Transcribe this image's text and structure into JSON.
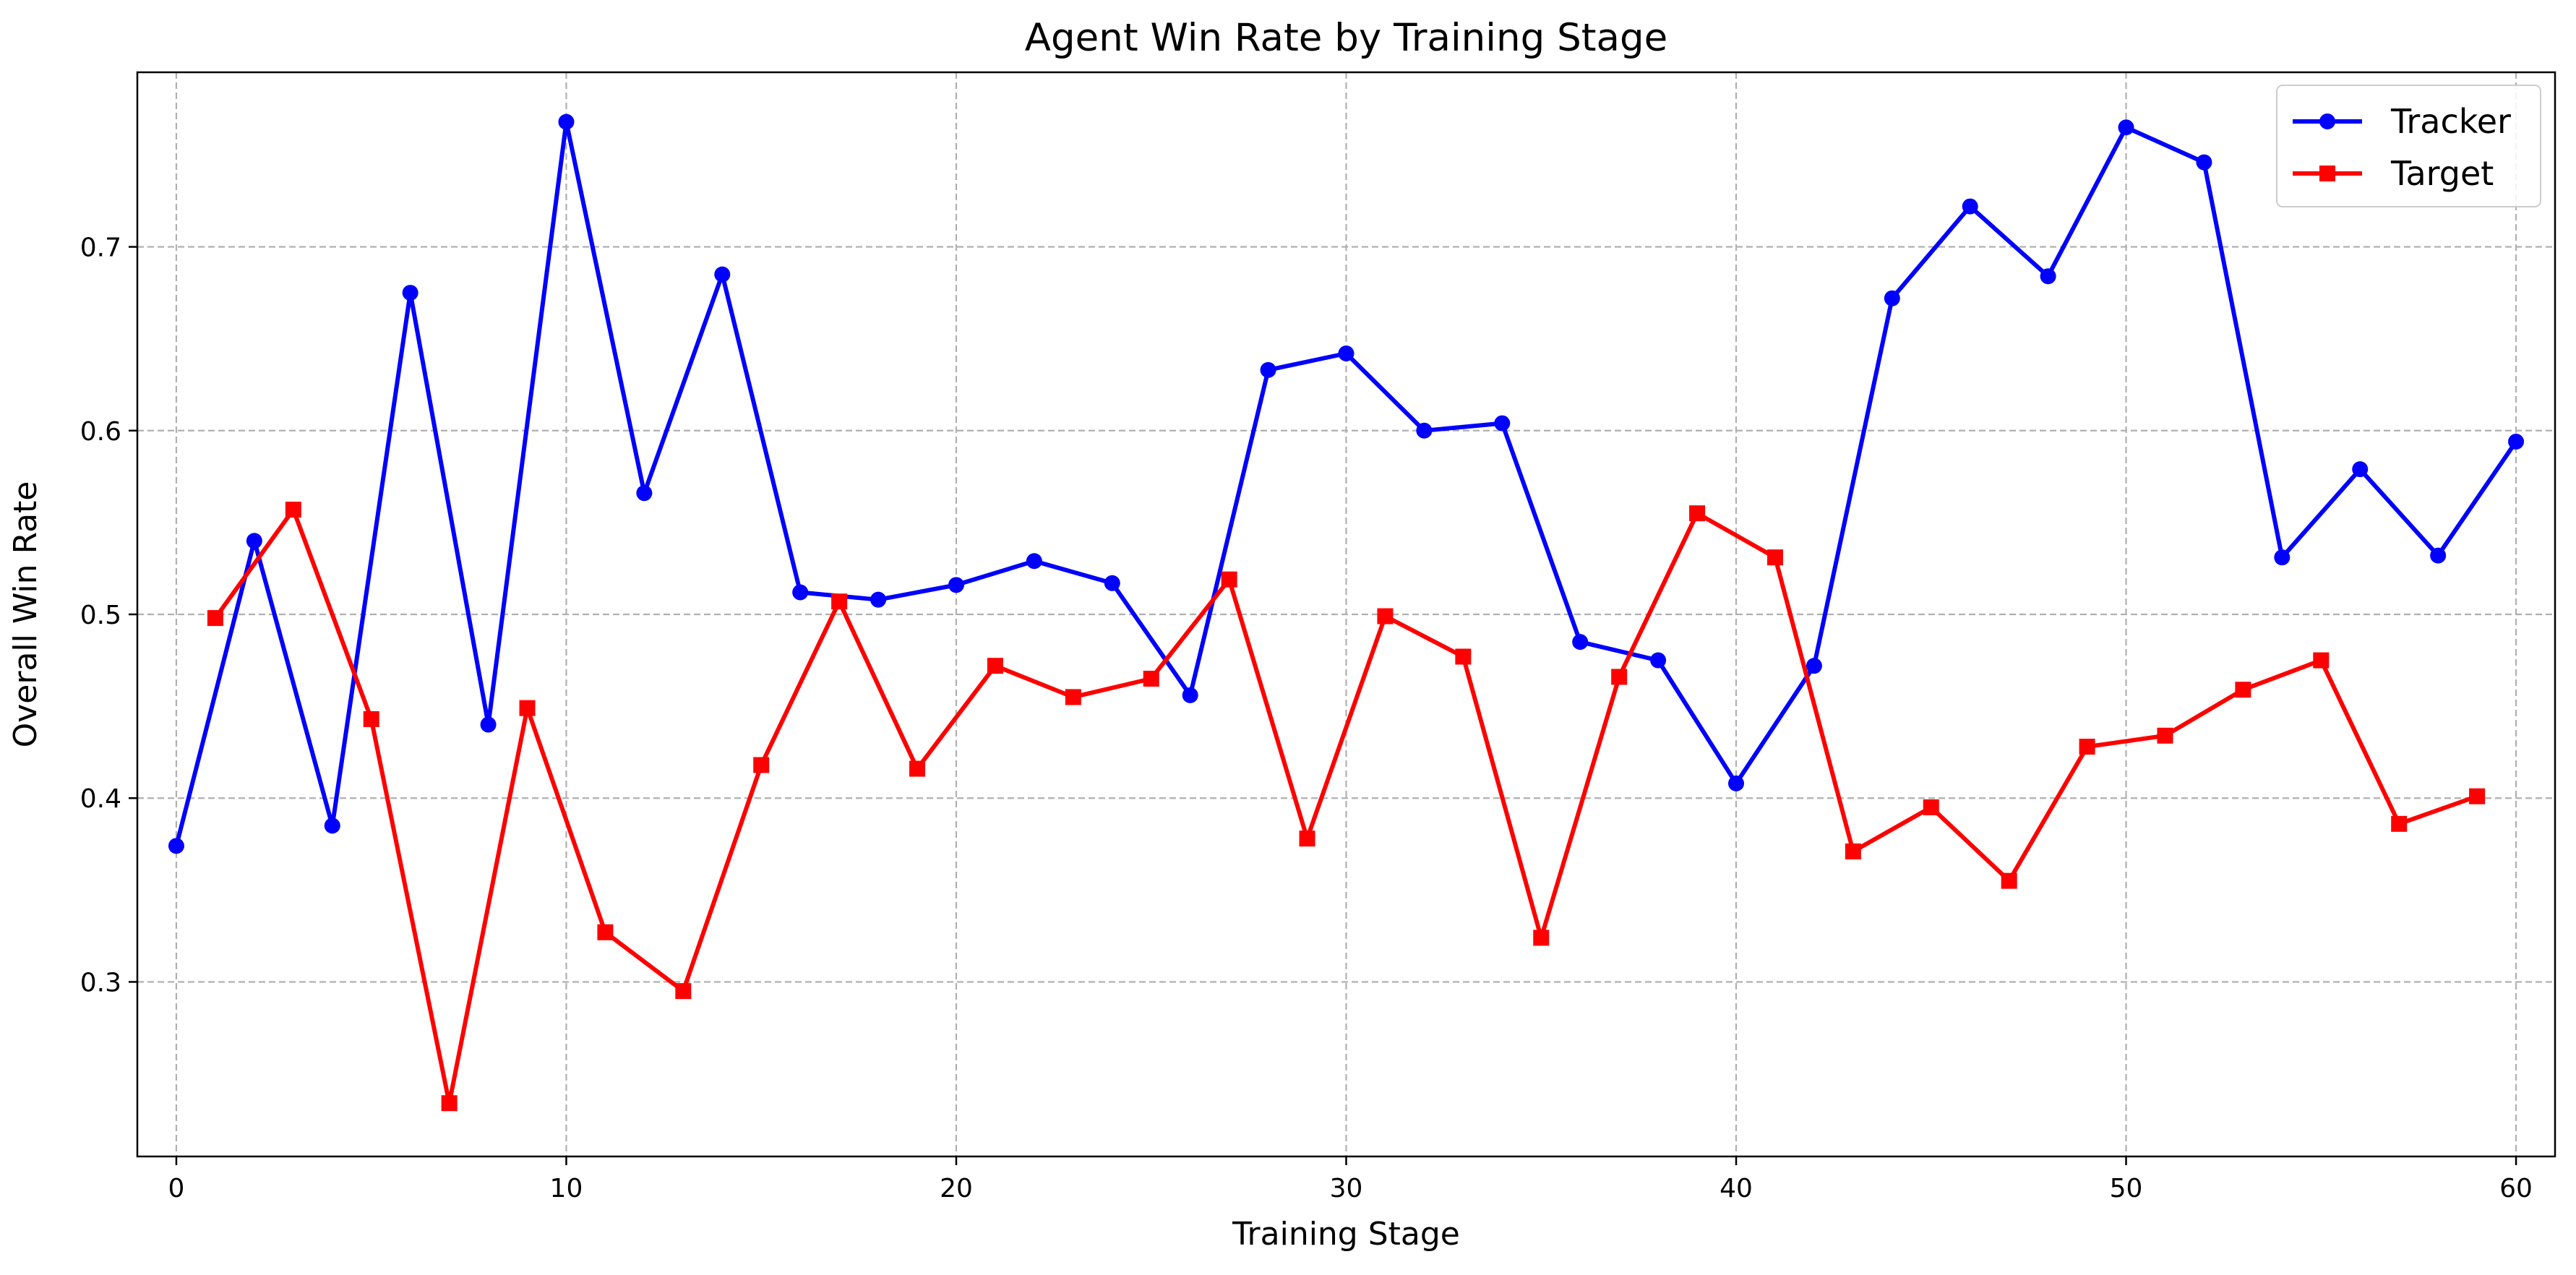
{
  "chart_data": {
    "type": "line",
    "title": "Agent Win Rate by Training Stage",
    "xlabel": "Training Stage",
    "ylabel": "Overall Win Rate",
    "xlim": [
      -1,
      61
    ],
    "ylim": [
      0.205,
      0.795
    ],
    "xticks": [
      0,
      10,
      20,
      30,
      40,
      50,
      60
    ],
    "yticks": [
      0.3,
      0.4,
      0.5,
      0.6,
      0.7
    ],
    "xtick_labels": [
      "0",
      "10",
      "20",
      "30",
      "40",
      "50",
      "60"
    ],
    "ytick_labels": [
      "0.3",
      "0.4",
      "0.5",
      "0.6",
      "0.7"
    ],
    "grid": true,
    "legend_position": "top-right",
    "series": [
      {
        "name": "Tracker",
        "color": "#0000ff",
        "marker": "circle",
        "x": [
          0,
          2,
          4,
          6,
          8,
          10,
          12,
          14,
          16,
          18,
          20,
          22,
          24,
          26,
          28,
          30,
          32,
          34,
          36,
          38,
          40,
          42,
          44,
          46,
          48,
          50,
          52,
          54,
          56,
          58,
          60
        ],
        "y": [
          0.374,
          0.54,
          0.385,
          0.675,
          0.44,
          0.768,
          0.566,
          0.685,
          0.512,
          0.508,
          0.516,
          0.529,
          0.517,
          0.456,
          0.633,
          0.642,
          0.6,
          0.604,
          0.485,
          0.475,
          0.408,
          0.472,
          0.672,
          0.722,
          0.684,
          0.765,
          0.746,
          0.531,
          0.579,
          0.532,
          0.594
        ]
      },
      {
        "name": "Target",
        "color": "#ff0000",
        "marker": "square",
        "x": [
          1,
          3,
          5,
          7,
          9,
          11,
          13,
          15,
          17,
          19,
          21,
          23,
          25,
          27,
          29,
          31,
          33,
          35,
          37,
          39,
          41,
          43,
          45,
          47,
          49,
          51,
          53,
          55,
          57,
          59
        ],
        "y": [
          0.498,
          0.557,
          0.443,
          0.234,
          0.449,
          0.327,
          0.295,
          0.418,
          0.507,
          0.416,
          0.472,
          0.455,
          0.465,
          0.519,
          0.378,
          0.499,
          0.477,
          0.324,
          0.466,
          0.555,
          0.531,
          0.371,
          0.395,
          0.355,
          0.428,
          0.434,
          0.459,
          0.475,
          0.386,
          0.401
        ]
      }
    ]
  }
}
